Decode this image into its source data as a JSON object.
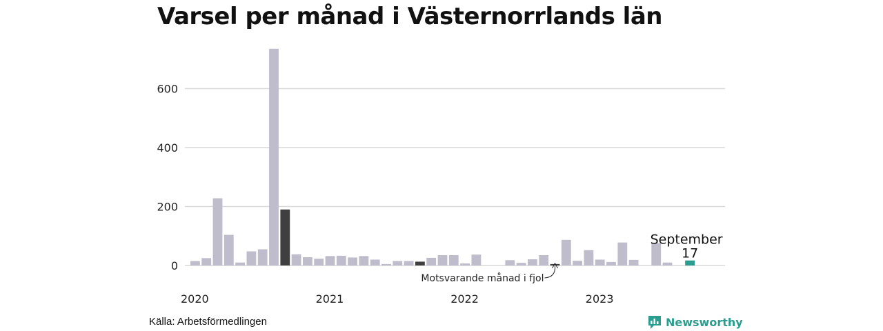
{
  "colors": {
    "bar": "#bfbccb",
    "bar_dark": "#3f3f3f",
    "highlight": "#2a9d8f",
    "grid": "#d9d9d9",
    "brand": "#2a9d8f"
  },
  "source_label": "Källa: Arbetsförmedlingen",
  "brand": {
    "name": "Newsworthy",
    "icon": "newsworthy-logo-icon"
  },
  "chart_data": {
    "type": "bar",
    "title": "Varsel per månad i Västernorrlands län",
    "xlabel": "",
    "ylabel": "",
    "ylim": [
      0,
      740
    ],
    "yticks": [
      0,
      200,
      400,
      600
    ],
    "grid": true,
    "year_labels": [
      {
        "label": "2020",
        "index": 0
      },
      {
        "label": "2021",
        "index": 12
      },
      {
        "label": "2022",
        "index": 24
      },
      {
        "label": "2023",
        "index": 36
      }
    ],
    "series": [
      {
        "months": [
          "2020-01",
          "2020-02",
          "2020-03",
          "2020-04",
          "2020-05",
          "2020-06",
          "2020-07",
          "2020-08",
          "2020-09",
          "2020-10",
          "2020-11",
          "2020-12",
          "2021-01",
          "2021-02",
          "2021-03",
          "2021-04",
          "2021-05",
          "2021-06",
          "2021-07",
          "2021-08",
          "2021-09",
          "2021-10",
          "2021-11",
          "2021-12",
          "2022-01",
          "2022-02",
          "2022-03",
          "2022-04",
          "2022-05",
          "2022-06",
          "2022-07",
          "2022-08",
          "2022-09",
          "2022-10",
          "2022-11",
          "2022-12",
          "2023-01",
          "2023-02",
          "2023-03",
          "2023-04",
          "2023-05",
          "2023-06",
          "2023-07",
          "2023-08",
          "2023-09"
        ],
        "values": [
          15,
          25,
          228,
          104,
          10,
          48,
          55,
          735,
          190,
          38,
          28,
          23,
          32,
          33,
          27,
          32,
          20,
          5,
          15,
          15,
          13,
          26,
          35,
          35,
          7,
          37,
          0,
          0,
          18,
          9,
          21,
          35,
          5,
          87,
          16,
          52,
          20,
          12,
          78,
          19,
          0,
          76,
          10,
          0,
          17
        ],
        "dark_indices": [
          8,
          20,
          32
        ],
        "highlight_index": 44
      }
    ],
    "annotations": [
      {
        "label": "September",
        "value_label": "17",
        "index": 44
      },
      {
        "label": "Motsvarande månad i fjol",
        "index": 32
      }
    ]
  }
}
